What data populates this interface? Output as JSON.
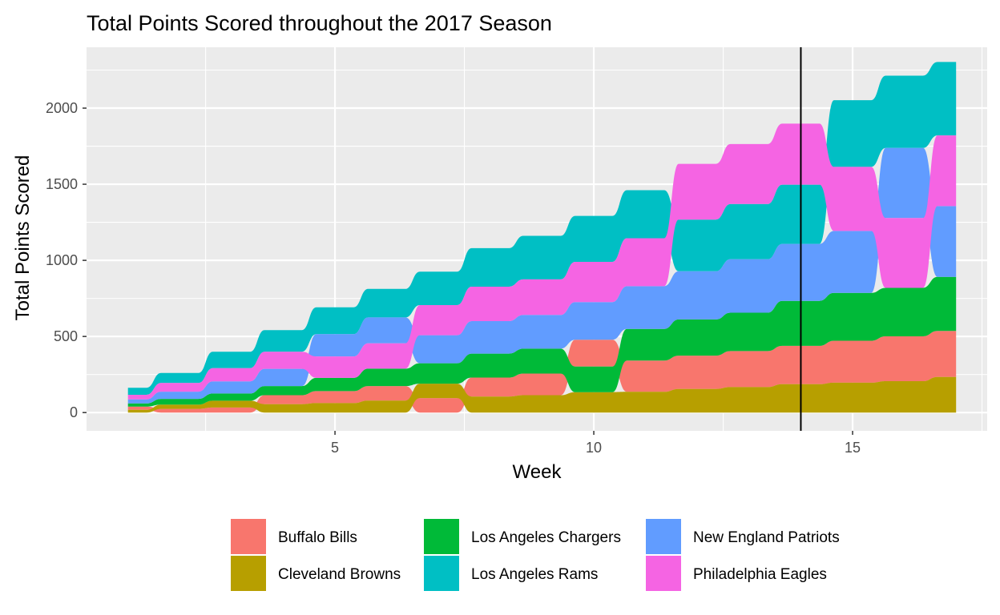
{
  "chart_data": {
    "type": "area",
    "subtype": "stacked-area-ranked",
    "title": "Total Points Scored throughout the 2017 Season",
    "xlabel": "Week",
    "ylabel": "Total Points Scored",
    "xlim": [
      0.2,
      17.6
    ],
    "ylim": [
      -120,
      2400
    ],
    "x_ticks": [
      5,
      10,
      15
    ],
    "y_ticks": [
      0,
      500,
      1000,
      1500,
      2000
    ],
    "grid": true,
    "background": "#ebebeb",
    "legend_position": "bottom",
    "reference_line": {
      "x": 14,
      "color": "#000000"
    },
    "x": [
      1,
      2,
      3,
      4,
      5,
      6,
      7,
      8,
      9,
      10,
      11,
      12,
      13,
      14,
      15,
      16,
      17
    ],
    "series": [
      {
        "name": "Buffalo Bills",
        "color": "#F8766D",
        "values": [
          21,
          24,
          33,
          59,
          79,
          95,
          95,
          125,
          142,
          176,
          206,
          219,
          237,
          252,
          276,
          295,
          302
        ]
      },
      {
        "name": "Cleveland Browns",
        "color": "#B79F00",
        "values": [
          18,
          28,
          45,
          55,
          62,
          79,
          95,
          105,
          114,
          134,
          136,
          155,
          167,
          186,
          196,
          206,
          234
        ]
      },
      {
        "name": "Los Angeles Chargers",
        "color": "#00BA38",
        "values": [
          21,
          38,
          47,
          60,
          87,
          114,
          134,
          157,
          164,
          168,
          207,
          238,
          252,
          296,
          314,
          318,
          355
        ]
      },
      {
        "name": "Los Angeles Rams",
        "color": "#00BFC4",
        "values": [
          46,
          66,
          107,
          142,
          177,
          187,
          220,
          253,
          286,
          302,
          316,
          340,
          363,
          389,
          438,
          475,
          482
        ]
      },
      {
        "name": "New England Patriots",
        "color": "#619CFF",
        "values": [
          27,
          47,
          80,
          113,
          146,
          170,
          184,
          214,
          221,
          248,
          281,
          316,
          351,
          374,
          407,
          460,
          465
        ]
      },
      {
        "name": "Philadelphia Eagles",
        "color": "#F564E3",
        "values": [
          30,
          57,
          87,
          113,
          141,
          167,
          198,
          226,
          234,
          264,
          315,
          366,
          394,
          401,
          421,
          459,
          465
        ]
      }
    ]
  }
}
